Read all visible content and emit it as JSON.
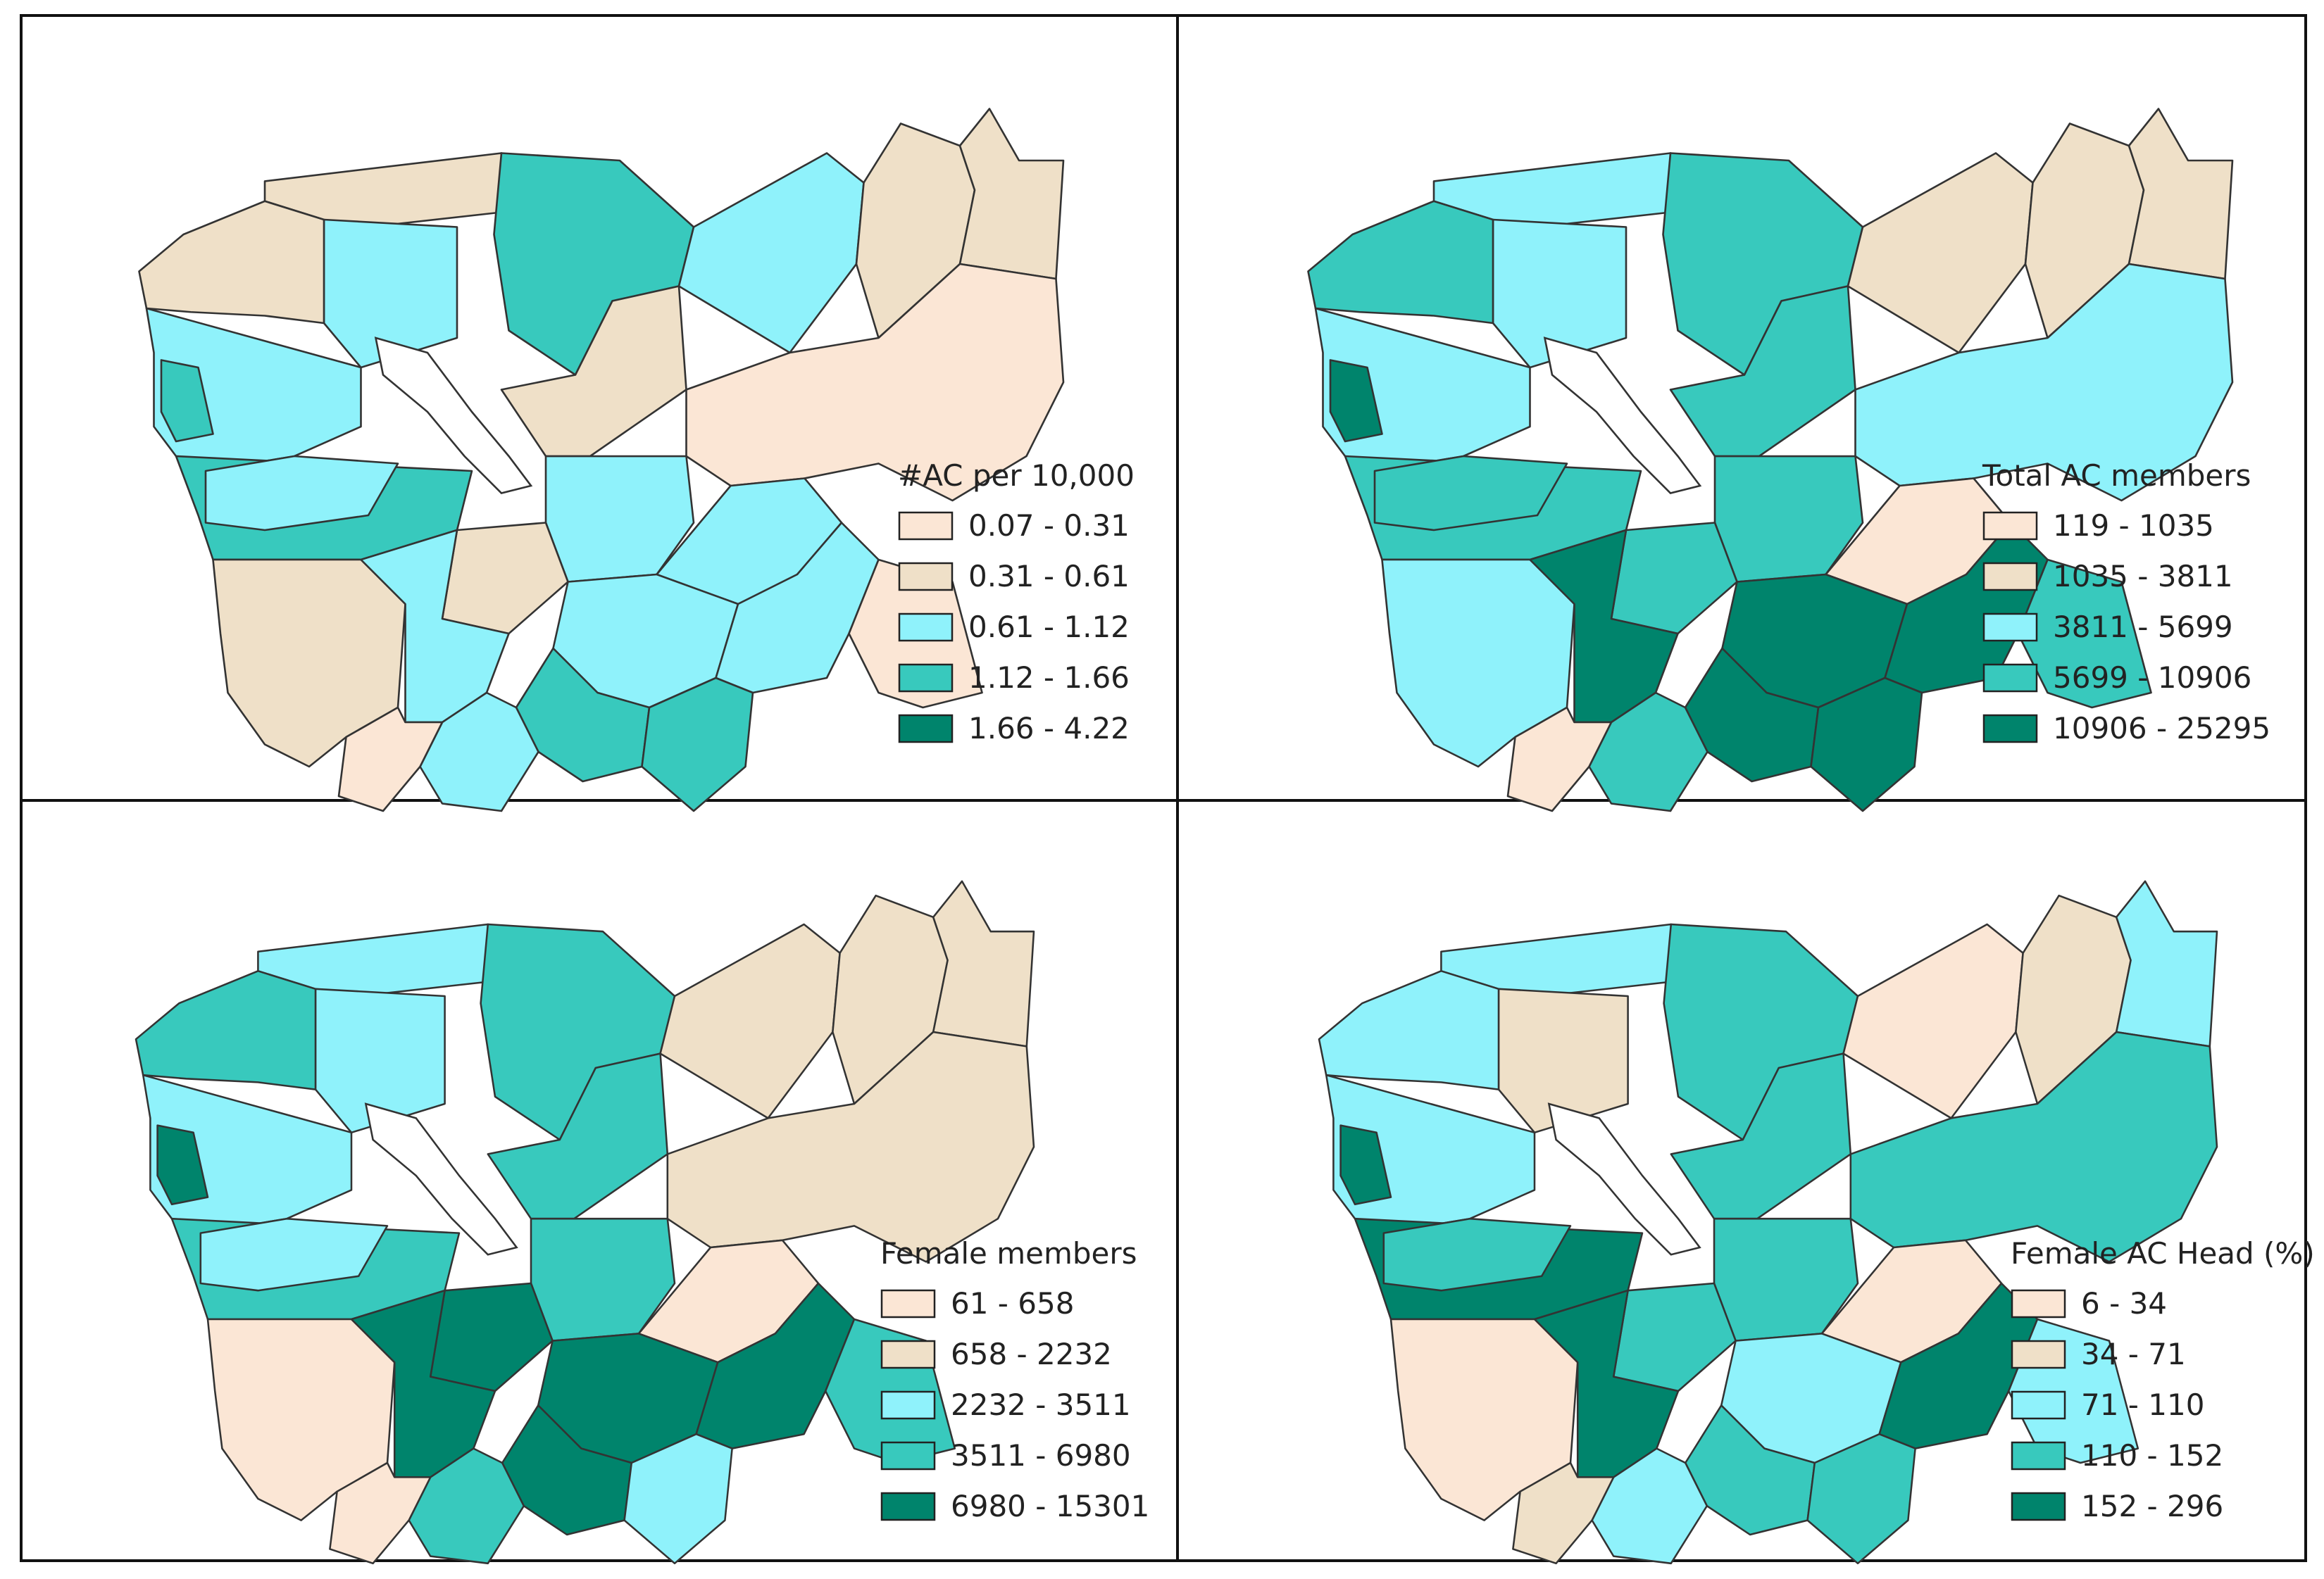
{
  "colors": {
    "c1": "#fbe6d5",
    "c2": "#efe0c8",
    "c3": "#8ff2fb",
    "c4": "#38c9bd",
    "c5": "#00846c"
  },
  "panels": [
    {
      "legend_title": "#AC per 10,000",
      "classes": [
        "0.07 - 0.31",
        "0.31 - 0.61",
        "0.61 - 1.12",
        "1.12 - 1.66",
        "1.66 - 4.22"
      ],
      "province_classes": [
        2,
        3,
        4,
        2,
        3,
        4,
        2,
        3,
        2,
        2,
        4,
        3,
        1,
        3,
        3,
        2,
        3,
        3,
        1,
        2,
        3,
        4,
        3,
        4,
        1
      ]
    },
    {
      "legend_title": "Total AC members",
      "classes": [
        "119 - 1035",
        "1035 - 3811",
        "3811 - 5699",
        "5699 - 10906",
        "10906 - 25295"
      ],
      "province_classes": [
        3,
        3,
        4,
        4,
        3,
        4,
        4,
        2,
        2,
        2,
        5,
        4,
        3,
        4,
        1,
        4,
        5,
        5,
        4,
        3,
        5,
        5,
        4,
        5,
        1
      ]
    },
    {
      "legend_title": "Female members",
      "classes": [
        "61 - 658",
        "658 - 2232",
        "2232 - 3511",
        "3511 - 6980",
        "6980 - 15301"
      ],
      "province_classes": [
        3,
        3,
        4,
        4,
        3,
        4,
        4,
        2,
        2,
        2,
        5,
        3,
        2,
        4,
        1,
        5,
        5,
        5,
        4,
        1,
        5,
        5,
        4,
        3,
        1
      ]
    },
    {
      "legend_title": "Female AC Head (%)",
      "classes": [
        "6 - 34",
        "34 - 71",
        "71 - 110",
        "110 - 152",
        "152 - 296"
      ],
      "province_classes": [
        3,
        2,
        4,
        3,
        3,
        5,
        4,
        1,
        2,
        3,
        5,
        4,
        4,
        4,
        1,
        4,
        3,
        5,
        3,
        1,
        5,
        4,
        3,
        4,
        2
      ]
    }
  ]
}
